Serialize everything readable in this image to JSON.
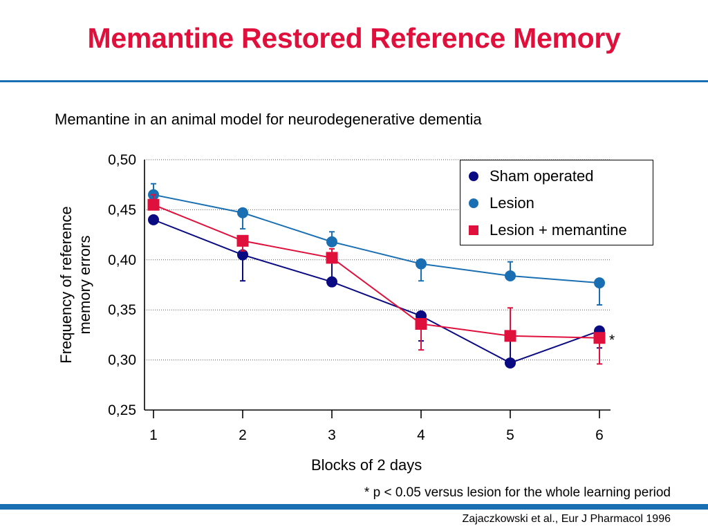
{
  "slide": {
    "title": "Memantine Restored Reference Memory",
    "subtitle": "Memantine in an animal model for neurodegenerative dementia",
    "footnote": "* p < 0.05 versus lesion for the whole learning period",
    "citation": "Zajaczkowski et al., Eur J Pharmacol 1996"
  },
  "colors": {
    "title": "#e0103c",
    "rule": "#1a6fb3"
  },
  "chart_data": {
    "type": "line",
    "xlabel": "Blocks of 2 days",
    "ylabel": "Frequency of reference memory errors",
    "x": [
      1,
      2,
      3,
      4,
      5,
      6
    ],
    "ylim": [
      0.25,
      0.5
    ],
    "y_ticks": [
      "0,25",
      "0,30",
      "0,35",
      "0,40",
      "0,45",
      "0,50"
    ],
    "y_tick_values": [
      0.25,
      0.3,
      0.35,
      0.4,
      0.45,
      0.5
    ],
    "grid": true,
    "legend_position": "top-right",
    "series": [
      {
        "name": "Sham operated",
        "color": "#0a0a82",
        "marker": "circle",
        "values": [
          0.44,
          0.405,
          0.378,
          0.344,
          0.297,
          0.329
        ],
        "errors": [
          0.004,
          0.026,
          0.027,
          0.025,
          0.025,
          0.017
        ]
      },
      {
        "name": "Lesion",
        "color": "#1a6fb3",
        "marker": "circle",
        "values": [
          0.465,
          0.447,
          0.418,
          0.396,
          0.384,
          0.377
        ],
        "errors": [
          0.011,
          0.016,
          0.01,
          0.017,
          0.014,
          0.022
        ]
      },
      {
        "name": "Lesion + memantine",
        "color": "#e0103c",
        "marker": "square",
        "values": [
          0.455,
          0.419,
          0.402,
          0.336,
          0.324,
          0.322
        ],
        "errors": [
          0.01,
          0.01,
          0.009,
          0.026,
          0.028,
          0.026
        ]
      }
    ],
    "annotations": [
      {
        "text": "*",
        "series": "Lesion + memantine",
        "x": 6
      }
    ]
  }
}
